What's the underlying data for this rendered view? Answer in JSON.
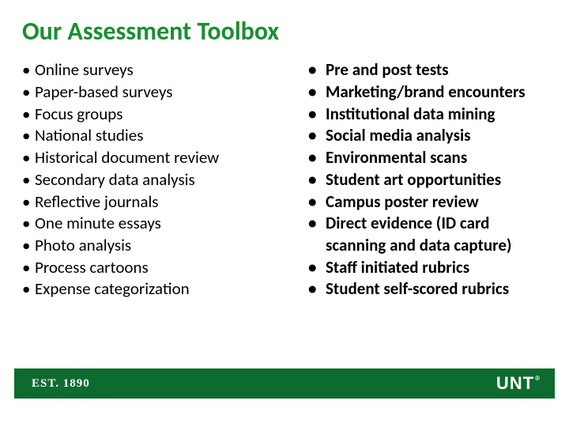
{
  "title": {
    "text": "Our Assessment Toolbox",
    "color": "#1a8f2f",
    "fontsize": 32
  },
  "body": {
    "text_color": "#000000",
    "fontsize": 21
  },
  "left_column": {
    "bold": false,
    "items": [
      "Online surveys",
      "Paper-based surveys",
      "Focus groups",
      "National studies",
      "Historical document review",
      "Secondary data analysis",
      "Reflective journals",
      "One minute essays",
      "Photo analysis",
      "Process cartoons",
      "Expense categorization"
    ]
  },
  "right_column": {
    "bold": true,
    "items": [
      "Pre and post tests",
      "Marketing/brand encounters",
      "Institutional data mining",
      "Social media analysis",
      "Environmental scans",
      "Student art opportunities",
      "Campus poster review",
      "Direct evidence (ID card scanning and data capture)",
      "Staff initiated rubrics",
      "Student self-scored rubrics"
    ]
  },
  "footer": {
    "background_color": "#0d6b2f",
    "text_color": "#ffffff",
    "est_text": "EST. 1890",
    "logo_text": "UNT",
    "logo_reg": "®"
  }
}
